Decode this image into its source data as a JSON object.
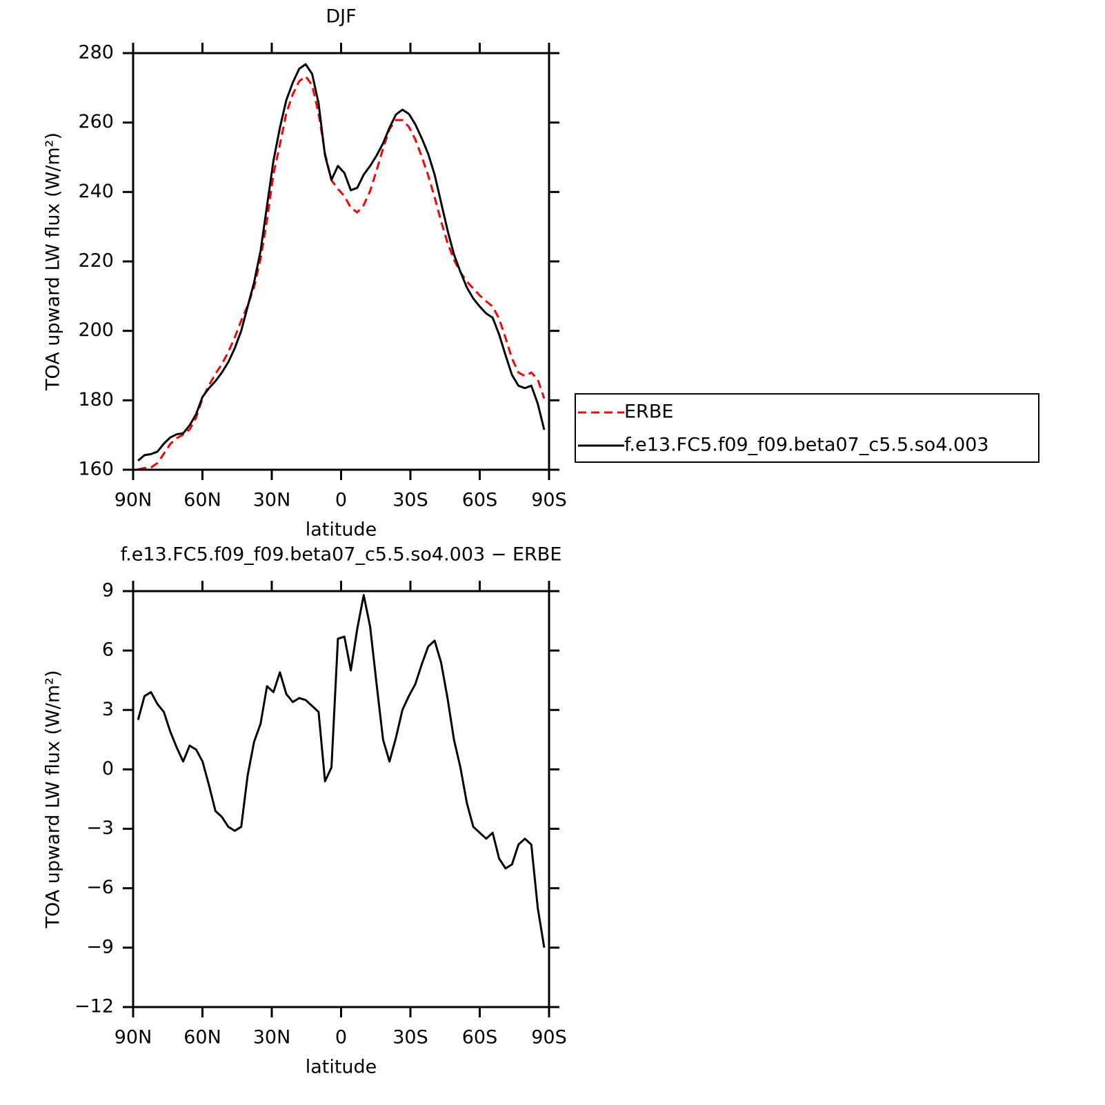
{
  "chart_data": [
    {
      "type": "line",
      "title": "DJF",
      "xlabel": "latitude",
      "ylabel": "TOA upward LW flux (W/m²)",
      "x": [
        87.86,
        85.07,
        82.28,
        79.49,
        76.7,
        73.91,
        71.12,
        68.33,
        65.54,
        62.75,
        59.96,
        57.17,
        54.38,
        51.59,
        48.8,
        46.01,
        43.22,
        40.43,
        37.64,
        34.85,
        32.06,
        29.27,
        26.48,
        23.69,
        20.9,
        18.11,
        15.32,
        12.53,
        9.74,
        6.95,
        4.16,
        1.37,
        -1.42,
        -4.21,
        -7.0,
        -9.79,
        -12.58,
        -15.37,
        -18.16,
        -20.95,
        -23.74,
        -26.53,
        -29.32,
        -32.11,
        -34.9,
        -37.69,
        -40.48,
        -43.27,
        -46.06,
        -48.85,
        -51.64,
        -54.43,
        -57.22,
        -60.01,
        -62.8,
        -65.59,
        -68.38,
        -71.17,
        -73.96,
        -76.75,
        -79.54,
        -82.33,
        -85.12,
        -87.91
      ],
      "series": [
        {
          "name": "ERBE",
          "color": "#ff0000",
          "dashed": true,
          "values": [
            160.1,
            160.5,
            160.6,
            161.9,
            164.6,
            167.4,
            169.1,
            170.1,
            171.6,
            175.0,
            180.6,
            184.3,
            187.6,
            190.4,
            193.9,
            198.1,
            202.9,
            207.3,
            212.6,
            220.7,
            231.8,
            245.1,
            253.6,
            262.7,
            268.1,
            271.9,
            273.3,
            270.8,
            262.6,
            251.1,
            243.4,
            240.9,
            238.8,
            235.5,
            234.1,
            236.2,
            240.3,
            246.2,
            252.5,
            258.1,
            260.7,
            260.7,
            258.8,
            255.2,
            250.2,
            244.8,
            238.5,
            231.6,
            225.4,
            220.5,
            216.9,
            214.2,
            212.2,
            210.2,
            208.5,
            207.0,
            203.5,
            198.0,
            192.1,
            188.0,
            187.0,
            188.0,
            186.0,
            180.5
          ]
        },
        {
          "name": "f.e13.FC5.f09_f09.beta07_c5.5.so4.003",
          "color": "#000000",
          "dashed": false,
          "values": [
            162.6,
            164.2,
            164.5,
            165.2,
            167.5,
            169.3,
            170.2,
            170.5,
            172.8,
            176.0,
            181.0,
            183.5,
            185.5,
            188.0,
            191.0,
            195.0,
            200.0,
            207.0,
            214.0,
            223.0,
            236.0,
            249.0,
            258.5,
            266.5,
            271.5,
            275.5,
            276.8,
            274.0,
            265.5,
            250.5,
            243.5,
            247.5,
            245.5,
            240.5,
            241.2,
            245.0,
            247.5,
            250.5,
            254.0,
            258.5,
            262.3,
            263.7,
            262.5,
            259.5,
            255.5,
            251.0,
            245.0,
            237.0,
            229.0,
            222.0,
            217.0,
            212.5,
            209.3,
            207.0,
            205.0,
            203.8,
            199.0,
            193.0,
            187.3,
            184.2,
            183.5,
            184.2,
            179.0,
            171.5
          ]
        }
      ],
      "xlim": [
        90,
        -90
      ],
      "xticks": [
        {
          "value": 90,
          "label": "90N"
        },
        {
          "value": 60,
          "label": "60N"
        },
        {
          "value": 30,
          "label": "30N"
        },
        0,
        {
          "value": -30,
          "label": "30S"
        },
        {
          "value": -60,
          "label": "60S"
        },
        {
          "value": -90,
          "label": "90S"
        }
      ],
      "ylim": [
        160,
        280
      ],
      "yticks": [
        160,
        180,
        200,
        220,
        240,
        260,
        280
      ],
      "legend": "outside-right"
    },
    {
      "type": "line",
      "title": "f.e13.FC5.f09_f09.beta07_c5.5.so4.003 − ERBE",
      "xlabel": "latitude",
      "ylabel": "TOA upward LW flux (W/m²)",
      "x": [
        87.86,
        85.07,
        82.28,
        79.49,
        76.7,
        73.91,
        71.12,
        68.33,
        65.54,
        62.75,
        59.96,
        57.17,
        54.38,
        51.59,
        48.8,
        46.01,
        43.22,
        40.43,
        37.64,
        34.85,
        32.06,
        29.27,
        26.48,
        23.69,
        20.9,
        18.11,
        15.32,
        12.53,
        9.74,
        6.95,
        4.16,
        1.37,
        -1.42,
        -4.21,
        -7.0,
        -9.79,
        -12.58,
        -15.37,
        -18.16,
        -20.95,
        -23.74,
        -26.53,
        -29.32,
        -32.11,
        -34.9,
        -37.69,
        -40.48,
        -43.27,
        -46.06,
        -48.85,
        -51.64,
        -54.43,
        -57.22,
        -60.01,
        -62.8,
        -65.59,
        -68.38,
        -71.17,
        -73.96,
        -76.75,
        -79.54,
        -82.33,
        -85.12,
        -87.91
      ],
      "series": [
        {
          "color": "#000000",
          "dashed": false,
          "values": [
            2.5,
            3.7,
            3.9,
            3.3,
            2.9,
            1.9,
            1.1,
            0.4,
            1.2,
            1.0,
            0.4,
            -0.8,
            -2.1,
            -2.4,
            -2.9,
            -3.1,
            -2.9,
            -0.3,
            1.4,
            2.3,
            4.2,
            3.9,
            4.9,
            3.8,
            3.4,
            3.6,
            3.5,
            3.2,
            2.9,
            -0.6,
            0.1,
            6.6,
            6.7,
            5.0,
            7.1,
            8.8,
            7.2,
            4.3,
            1.5,
            0.4,
            1.6,
            3.0,
            3.7,
            4.3,
            5.3,
            6.2,
            6.5,
            5.4,
            3.6,
            1.5,
            0.1,
            -1.7,
            -2.9,
            -3.2,
            -3.5,
            -3.2,
            -4.5,
            -5.0,
            -4.8,
            -3.8,
            -3.5,
            -3.8,
            -7.0,
            -9.0
          ]
        }
      ],
      "xlim": [
        90,
        -90
      ],
      "xticks": [
        {
          "value": 90,
          "label": "90N"
        },
        {
          "value": 60,
          "label": "60N"
        },
        {
          "value": 30,
          "label": "30N"
        },
        0,
        {
          "value": -30,
          "label": "30S"
        },
        {
          "value": -60,
          "label": "60S"
        },
        {
          "value": -90,
          "label": "90S"
        }
      ],
      "ylim": [
        -12,
        9
      ],
      "yticks": [
        {
          "value": -12,
          "label": "−12"
        },
        {
          "value": -9,
          "label": "−9"
        },
        {
          "value": -6,
          "label": "−6"
        },
        {
          "value": -3,
          "label": "−3"
        },
        0,
        3,
        6,
        9
      ]
    }
  ]
}
